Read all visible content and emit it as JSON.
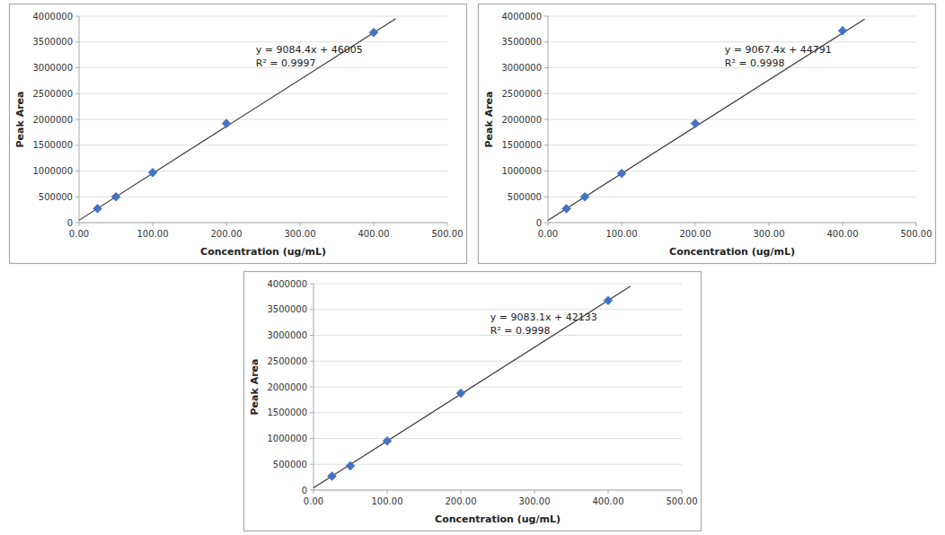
{
  "chart_data": [
    {
      "type": "scatter",
      "xlabel": "Concentration (ug/mL)",
      "ylabel": "Peak Area",
      "annotations": [
        "y = 9084.4x + 46005",
        "R² = 0.9997"
      ],
      "series": [
        {
          "type": "line",
          "color": "#3a3a3a",
          "line_style": "solid",
          "x": [
            0,
            430
          ],
          "values": [
            46005,
            3952297
          ]
        },
        {
          "type": "scatter",
          "color": "#4472C4",
          "marker": "diamond",
          "x": [
            25,
            50,
            100,
            200,
            400
          ],
          "values": [
            272115,
            500000,
            970000,
            1920000,
            3682760
          ]
        }
      ],
      "xlim": [
        0,
        500
      ],
      "ylim": [
        0,
        4000000
      ],
      "xticks": [
        {
          "value": 0,
          "label": "0.00"
        },
        {
          "value": 100,
          "label": "100.00"
        },
        {
          "value": 200,
          "label": "200.00"
        },
        {
          "value": 300,
          "label": "300.00"
        },
        {
          "value": 400,
          "label": "400.00"
        },
        {
          "value": 500,
          "label": "500.00"
        }
      ],
      "yticks": [
        0,
        500000,
        1000000,
        1500000,
        2000000,
        2500000,
        3000000,
        3500000,
        4000000
      ],
      "grid": "y"
    },
    {
      "type": "scatter",
      "xlabel": "Concentration (ug/mL)",
      "ylabel": "Peak Area",
      "annotations": [
        "y = 9067.4x + 44791",
        "R² = 0.9998"
      ],
      "series": [
        {
          "type": "line",
          "color": "#3a3a3a",
          "line_style": "solid",
          "x": [
            0,
            430
          ],
          "values": [
            44791,
            3943773
          ]
        },
        {
          "type": "scatter",
          "color": "#4472C4",
          "marker": "diamond",
          "x": [
            25,
            50,
            100,
            200,
            400
          ],
          "values": [
            271435,
            498700,
            951680,
            1921000,
            3718360
          ]
        }
      ],
      "xlim": [
        0,
        500
      ],
      "ylim": [
        0,
        4000000
      ],
      "xticks": [
        {
          "value": 0,
          "label": "0.00"
        },
        {
          "value": 100,
          "label": "100.00"
        },
        {
          "value": 200,
          "label": "200.00"
        },
        {
          "value": 300,
          "label": "300.00"
        },
        {
          "value": 400,
          "label": "400.00"
        },
        {
          "value": 500,
          "label": "500.00"
        }
      ],
      "yticks": [
        0,
        500000,
        1000000,
        1500000,
        2000000,
        2500000,
        3000000,
        3500000,
        4000000
      ],
      "grid": "y"
    },
    {
      "type": "scatter",
      "xlabel": "Concentration (ug/mL)",
      "ylabel": "Peak Area",
      "annotations": [
        "y = 9083.1x + 42133",
        "R² = 0.9998"
      ],
      "series": [
        {
          "type": "line",
          "color": "#3a3a3a",
          "line_style": "solid",
          "x": [
            0,
            430
          ],
          "values": [
            42133,
            3947866
          ]
        },
        {
          "type": "scatter",
          "color": "#4472C4",
          "marker": "diamond",
          "x": [
            25,
            50,
            100,
            200,
            400
          ],
          "values": [
            269200,
            471600,
            950800,
            1878000,
            3675320
          ]
        }
      ],
      "xlim": [
        0,
        500
      ],
      "ylim": [
        0,
        4000000
      ],
      "xticks": [
        {
          "value": 0,
          "label": "0.00"
        },
        {
          "value": 100,
          "label": "100.00"
        },
        {
          "value": 200,
          "label": "200.00"
        },
        {
          "value": 300,
          "label": "300.00"
        },
        {
          "value": 400,
          "label": "400.00"
        },
        {
          "value": 500,
          "label": "500.00"
        }
      ],
      "yticks": [
        0,
        500000,
        1000000,
        1500000,
        2000000,
        2500000,
        3000000,
        3500000,
        4000000
      ],
      "grid": "y"
    }
  ]
}
